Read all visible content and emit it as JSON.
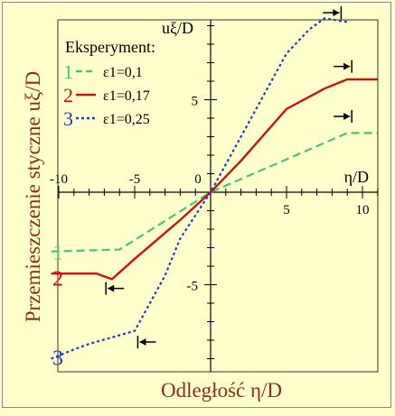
{
  "chart_data": {
    "type": "line",
    "xlabel": "Odległość  η/D",
    "ylabel": "Przemieszczenie styczne  uξ/D",
    "y_axis_title": "uξ/D",
    "x_axis_title": "η/D",
    "xlim": [
      -12,
      11
    ],
    "ylim": [
      -9.5,
      10
    ],
    "x_ticks": [
      -10,
      -5,
      0,
      5,
      10
    ],
    "y_ticks": [
      5,
      0,
      -5
    ],
    "x_tick_labels": [
      "-10",
      "-5",
      "0",
      "5",
      "10"
    ],
    "y_tick_labels": [
      "5",
      "0",
      "-5"
    ],
    "legend_title": "Eksperyment:",
    "legend_position": "top-left",
    "series": [
      {
        "name": "ε1=0,1",
        "number": "1",
        "color": "#4ebf78",
        "dash": "dashed",
        "x": [
          -10.5,
          -6,
          0,
          9,
          11
        ],
        "y": [
          -3.2,
          -3.1,
          0,
          3.2,
          3.2
        ]
      },
      {
        "name": "ε1=0,17",
        "number": "2",
        "color": "#cc1111",
        "dash": "solid",
        "x": [
          -10.5,
          -7.5,
          -6.5,
          -5,
          -2,
          0,
          2,
          5,
          7.5,
          9,
          11
        ],
        "y": [
          -4.4,
          -4.4,
          -4.7,
          -3.6,
          -1.5,
          0,
          1.7,
          4.5,
          5.6,
          6.1,
          6.1
        ]
      },
      {
        "name": "ε1=0,25",
        "number": "3",
        "color": "#1a3fb5",
        "dash": "dotted",
        "x": [
          -10.5,
          -9,
          -8,
          -5,
          -3,
          -2,
          0,
          2,
          3,
          5,
          6.5,
          7.5,
          9
        ],
        "y": [
          -9,
          -8.5,
          -8.2,
          -7.5,
          -4.5,
          -2.5,
          0,
          3,
          4.5,
          7.5,
          8.8,
          9.4,
          9.2
        ]
      }
    ],
    "annotations": {
      "arrows": [
        {
          "x": 8.0,
          "y": 9.7,
          "dir": "right"
        },
        {
          "x": 8.7,
          "y": 6.8,
          "dir": "right"
        },
        {
          "x": 8.7,
          "y": 4.1,
          "dir": "right"
        },
        {
          "x": -6.3,
          "y": -5.2,
          "dir": "left"
        },
        {
          "x": -4.2,
          "y": -8.1,
          "dir": "left"
        }
      ]
    }
  }
}
